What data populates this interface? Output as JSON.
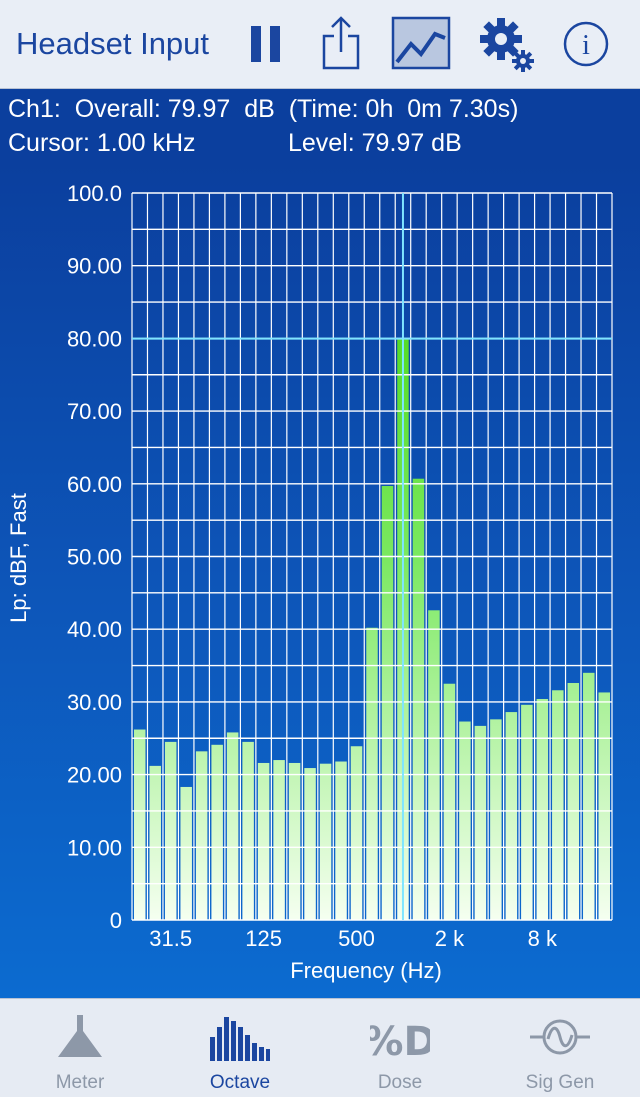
{
  "header": {
    "title": "Headset Input"
  },
  "toolbar": {
    "pause_icon": "pause-icon",
    "share_icon": "share-icon",
    "graph_icon": "graph-icon",
    "settings_icon": "gear-icon",
    "info_icon": "info-icon"
  },
  "info": {
    "line1": "Ch1:  Overall: 79.97  dB  (Time: 0h  0m 7.30s)",
    "cursor": "Cursor: 1.00 kHz",
    "level": "Level: 79.97 dB"
  },
  "chart_data": {
    "type": "bar",
    "ylabel": "Lp: dBF, Fast",
    "xlabel": "Frequency (Hz)",
    "ylim": [
      0,
      100
    ],
    "y_ticks": [
      "0",
      "10.00",
      "20.00",
      "30.00",
      "40.00",
      "50.00",
      "60.00",
      "70.00",
      "80.00",
      "90.00",
      "100.0"
    ],
    "x_tick_labels": [
      {
        "label": "31.5",
        "index": 2
      },
      {
        "label": "125",
        "index": 8
      },
      {
        "label": "500",
        "index": 14
      },
      {
        "label": "2 k",
        "index": 20
      },
      {
        "label": "8 k",
        "index": 26
      }
    ],
    "values": [
      26.2,
      21.2,
      24.5,
      18.3,
      23.2,
      24.1,
      25.8,
      24.5,
      21.6,
      22.0,
      21.6,
      20.9,
      21.5,
      21.8,
      23.9,
      40.2,
      59.7,
      79.97,
      60.7,
      42.6,
      32.5,
      27.3,
      26.7,
      27.6,
      28.6,
      29.6,
      30.4,
      31.6,
      32.6,
      34.0,
      31.3
    ],
    "cursor_index": 17,
    "cursor_level": 79.97,
    "grid": true,
    "colors": {
      "bar_top": "#3dd400",
      "bar_bottom": "#f5fff0",
      "grid": "#ffffff",
      "cursor": "#7fe5ff"
    }
  },
  "tabs": [
    {
      "label": "Meter",
      "icon": "meter-icon",
      "active": false
    },
    {
      "label": "Octave",
      "icon": "octave-icon",
      "active": true
    },
    {
      "label": "Dose",
      "icon": "dose-icon",
      "active": false
    },
    {
      "label": "Sig Gen",
      "icon": "sig-gen-icon",
      "active": false
    }
  ]
}
